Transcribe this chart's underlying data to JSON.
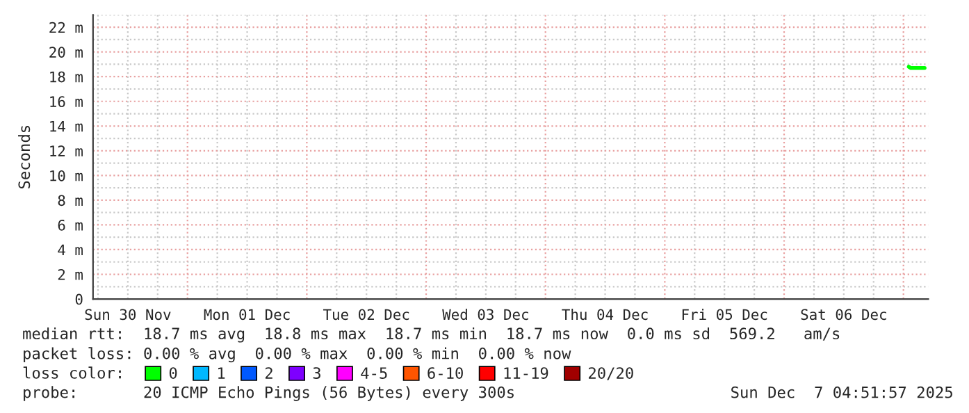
{
  "chart_data": {
    "type": "line",
    "ylabel": "Seconds",
    "xlim": [
      "2025-11-30T05:00",
      "2025-12-07T05:00"
    ],
    "xticks": [
      {
        "value": "2025-11-30T12:00",
        "label": "Sun 30 Nov"
      },
      {
        "value": "2025-12-01T00:00",
        "label": null
      },
      {
        "value": "2025-12-01T12:00",
        "label": "Mon 01 Dec"
      },
      {
        "value": "2025-12-02T00:00",
        "label": null
      },
      {
        "value": "2025-12-02T12:00",
        "label": "Tue 02 Dec"
      },
      {
        "value": "2025-12-03T00:00",
        "label": null
      },
      {
        "value": "2025-12-03T12:00",
        "label": "Wed 03 Dec"
      },
      {
        "value": "2025-12-04T00:00",
        "label": null
      },
      {
        "value": "2025-12-04T12:00",
        "label": "Thu 04 Dec"
      },
      {
        "value": "2025-12-05T00:00",
        "label": null
      },
      {
        "value": "2025-12-05T12:00",
        "label": "Fri 05 Dec"
      },
      {
        "value": "2025-12-06T00:00",
        "label": null
      },
      {
        "value": "2025-12-06T12:00",
        "label": "Sat 06 Dec"
      },
      {
        "value": "2025-12-07T00:00",
        "label": null
      }
    ],
    "ylim": [
      0,
      23
    ],
    "yticks": [
      0,
      {
        "value": 2,
        "label": "2 m"
      },
      {
        "value": 4,
        "label": "4 m"
      },
      {
        "value": 6,
        "label": "6 m"
      },
      {
        "value": 8,
        "label": "8 m"
      },
      {
        "value": 10,
        "label": "10 m"
      },
      {
        "value": 12,
        "label": "12 m"
      },
      {
        "value": 14,
        "label": "14 m"
      },
      {
        "value": 16,
        "label": "16 m"
      },
      {
        "value": 18,
        "label": "18 m"
      },
      {
        "value": 20,
        "label": "20 m"
      },
      {
        "value": 22,
        "label": "22 m"
      }
    ],
    "grid": true,
    "legend": "bottom",
    "legend_title": "loss color:",
    "series": [
      {
        "name": "0",
        "color": "#00ff00",
        "x": [
          "2025-12-07T01:05",
          "2025-12-07T01:30",
          "2025-12-07T04:15"
        ],
        "values": [
          18.8,
          18.7,
          18.7
        ]
      },
      {
        "name": "1",
        "color": "#00b8ff"
      },
      {
        "name": "2",
        "color": "#0059ff"
      },
      {
        "name": "3",
        "color": "#7e00ff"
      },
      {
        "name": "4-5",
        "color": "#ff00ff"
      },
      {
        "name": "6-10",
        "color": "#ff5500"
      },
      {
        "name": "11-19",
        "color": "#ff0000"
      },
      {
        "name": "20/20",
        "color": "#a10000"
      }
    ],
    "annotations": [
      "median rtt:  18.7 ms avg  18.8 ms max  18.7 ms min  18.7 ms now  0.0 ms sd  569.2   am/s",
      "packet loss: 0.00 % avg  0.00 % max  0.00 % min  0.00 % now",
      "probe:       20 ICMP Echo Pings (56 Bytes) every 300s",
      "Sun Dec  7 04:51:57 2025"
    ]
  }
}
